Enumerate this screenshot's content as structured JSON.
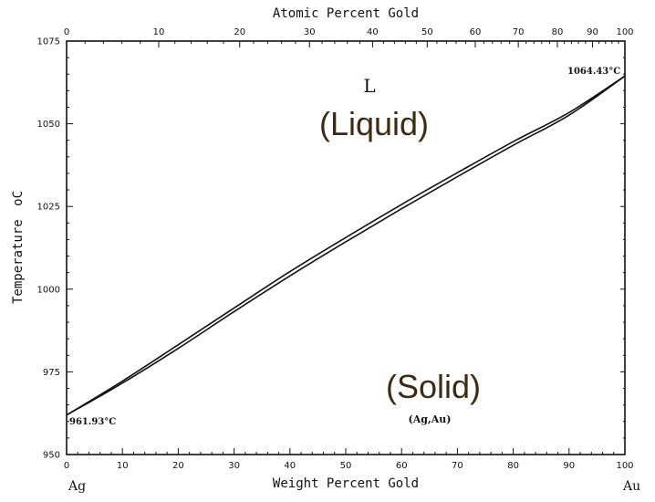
{
  "chart_data": {
    "type": "line",
    "title": "",
    "xlabel": "Weight Percent Gold",
    "ylabel": "Temperature",
    "ylabel_unit": "oC",
    "top_xlabel": "Atomic Percent Gold",
    "xlim": [
      0,
      100
    ],
    "ylim": [
      950,
      1075
    ],
    "grid": false,
    "x_ticks": [
      0,
      10,
      20,
      30,
      40,
      50,
      60,
      70,
      80,
      90,
      100
    ],
    "y_ticks": [
      950,
      975,
      1000,
      1025,
      1050,
      1075
    ],
    "top_ticks": [
      {
        "label": "0",
        "wt": 0
      },
      {
        "label": "10",
        "wt": 16.5
      },
      {
        "label": "20",
        "wt": 31.0
      },
      {
        "label": "30",
        "wt": 43.5
      },
      {
        "label": "40",
        "wt": 54.8
      },
      {
        "label": "50",
        "wt": 64.6
      },
      {
        "label": "60",
        "wt": 73.2
      },
      {
        "label": "70",
        "wt": 80.9
      },
      {
        "label": "80",
        "wt": 87.9
      },
      {
        "label": "90",
        "wt": 94.2
      },
      {
        "label": "100",
        "wt": 100
      }
    ],
    "series": [
      {
        "name": "",
        "x": [
          0,
          10,
          20,
          30,
          40,
          50,
          60,
          70,
          80,
          90,
          100
        ],
        "y": [
          961.93,
          972.2,
          983.2,
          994.3,
          1005.3,
          1015.6,
          1025.6,
          1035.2,
          1044.6,
          1053.4,
          1064.43
        ]
      },
      {
        "name": "",
        "x": [
          0,
          10,
          20,
          30,
          40,
          50,
          60,
          70,
          80,
          90,
          100
        ],
        "y": [
          961.93,
          971.6,
          982.1,
          993.2,
          1004.0,
          1014.3,
          1024.3,
          1034.0,
          1043.5,
          1052.6,
          1064.43
        ]
      }
    ],
    "annotations": {
      "ag_melting": "961.93°C",
      "au_melting": "1064.43°C",
      "left_end": "Ag",
      "right_end": "Au",
      "liquid_symbol": "L",
      "liquid_label": "(Liquid)",
      "solid_label": "(Solid)",
      "solid_phase": "(Ag,Au)"
    },
    "colors": {
      "lines": "#111111",
      "callout_text": "#3d2b14"
    }
  }
}
